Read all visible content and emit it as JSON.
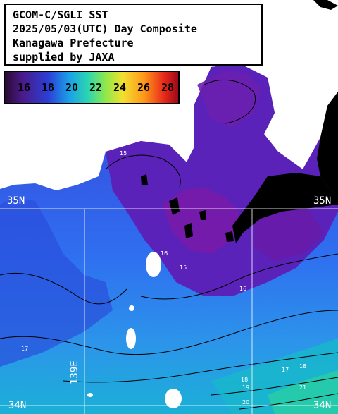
{
  "title": {
    "line1": "GCOM-C/SGLI SST",
    "line2": "2025/05/03(UTC) Day Composite",
    "line3": "Kanagawa Prefecture",
    "line4": "supplied by JAXA"
  },
  "legend": {
    "ticks": [
      "16",
      "18",
      "20",
      "22",
      "24",
      "26",
      "28"
    ]
  },
  "axes": {
    "lat_35_left": "35N",
    "lat_35_right": "35N",
    "lat_34_left": "34N",
    "lat_34_right": "34N",
    "lon_139": "139E"
  },
  "contour_labels": [
    "15",
    "16",
    "15",
    "17",
    "16",
    "18",
    "17",
    "18",
    "19",
    "20",
    "21"
  ],
  "colors": {
    "land": "#000000",
    "cold_water": "#4a1a9a",
    "mid_water": "#2b55e0",
    "warm_water": "#1aa0e8",
    "gridline": "#ffffff"
  }
}
